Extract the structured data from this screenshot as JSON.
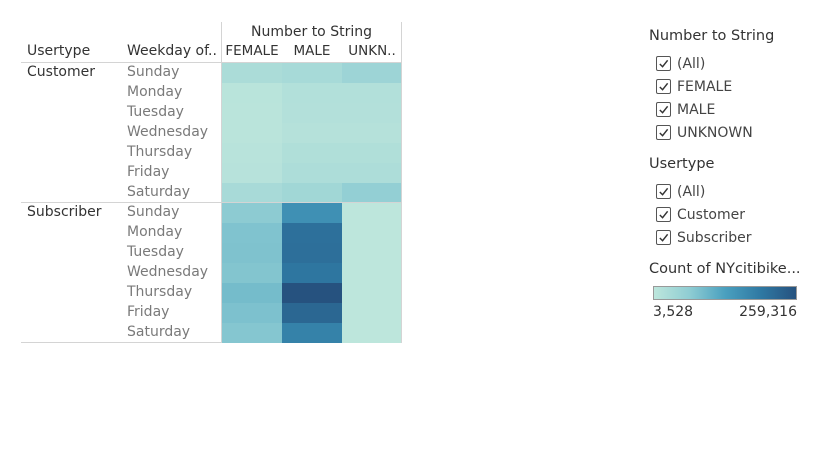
{
  "header": {
    "column_group_title": "Number to String",
    "row_header_usertype": "Usertype",
    "row_header_weekday": "Weekday of..",
    "columns": [
      "FEMALE",
      "MALE",
      "UNKN.."
    ]
  },
  "rows": {
    "usertypes": [
      "Customer",
      "Subscriber"
    ],
    "weekdays": [
      "Sunday",
      "Monday",
      "Tuesday",
      "Wednesday",
      "Thursday",
      "Friday",
      "Saturday"
    ]
  },
  "filters": {
    "gender": {
      "title": "Number to String",
      "items": [
        "(All)",
        "FEMALE",
        "MALE",
        "UNKNOWN"
      ]
    },
    "usertype": {
      "title": "Usertype",
      "items": [
        "(All)",
        "Customer",
        "Subscriber"
      ]
    }
  },
  "legend": {
    "title": "Count of NYcitibike...",
    "min_label": "3,528",
    "max_label": "259,316"
  },
  "chart_data": {
    "type": "heatmap",
    "x_categories": [
      "FEMALE",
      "MALE",
      "UNKN.."
    ],
    "y_groups": [
      "Customer",
      "Subscriber"
    ],
    "y_categories": [
      "Sunday",
      "Monday",
      "Tuesday",
      "Wednesday",
      "Thursday",
      "Friday",
      "Saturday"
    ],
    "color_range": [
      3528,
      259316
    ],
    "colors": {
      "low": "#bde6dc",
      "high": "#26527f"
    },
    "series": [
      {
        "name": "Customer",
        "values": [
          [
            22000,
            26000,
            36000
          ],
          [
            8000,
            15000,
            15000
          ],
          [
            7000,
            14000,
            14000
          ],
          [
            7000,
            12000,
            12000
          ],
          [
            9000,
            17000,
            17000
          ],
          [
            10000,
            20000,
            20000
          ],
          [
            25000,
            32000,
            46000
          ]
        ]
      },
      {
        "name": "Subscriber",
        "values": [
          [
            52000,
            150000,
            3528
          ],
          [
            65000,
            210000,
            3600
          ],
          [
            66000,
            212000,
            3600
          ],
          [
            62000,
            200000,
            3600
          ],
          [
            76000,
            259316,
            3700
          ],
          [
            68000,
            225000,
            3600
          ],
          [
            60000,
            178000,
            3528
          ]
        ]
      }
    ]
  }
}
